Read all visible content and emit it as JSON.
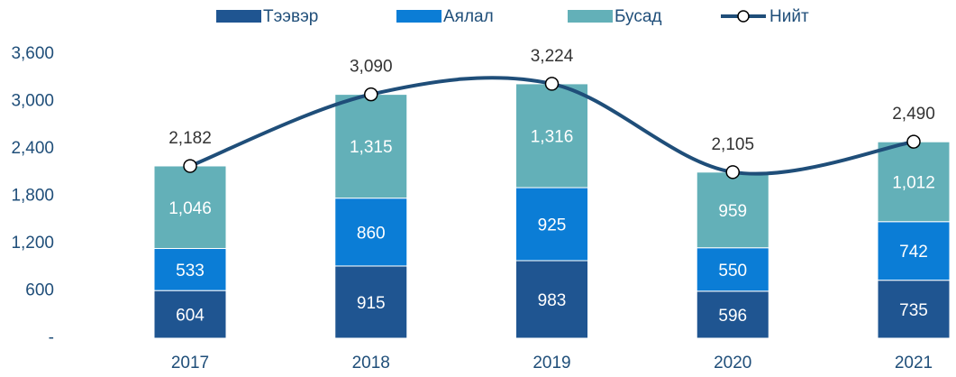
{
  "chart_data": {
    "type": "bar",
    "stacked": true,
    "categories": [
      "2017",
      "2018",
      "2019",
      "2020",
      "2021"
    ],
    "series": [
      {
        "name": "Тээвэр",
        "color": "#1f5591",
        "values": [
          604,
          915,
          983,
          596,
          735
        ]
      },
      {
        "name": "Аялал",
        "color": "#0b7dd6",
        "values": [
          533,
          860,
          925,
          550,
          742
        ]
      },
      {
        "name": "Бусад",
        "color": "#63b0b8",
        "values": [
          1046,
          1315,
          1316,
          959,
          1012
        ],
        "value_labels": [
          "1,046",
          "1,315",
          "1,316",
          "959",
          "1,012"
        ]
      },
      {
        "name": "Нийт",
        "type": "line",
        "color": "#1f4e79",
        "values": [
          2182,
          3090,
          3224,
          2105,
          2490
        ],
        "value_labels": [
          "2,182",
          "3,090",
          "3,224",
          "2,105",
          "2,490"
        ]
      }
    ],
    "ylim": [
      0,
      3600
    ],
    "yticks": [
      {
        "value": 0,
        "label": "-"
      },
      {
        "value": 600,
        "label": "600"
      },
      {
        "value": 1200,
        "label": "1,200"
      },
      {
        "value": 1800,
        "label": "1,800"
      },
      {
        "value": 2400,
        "label": "2,400"
      },
      {
        "value": 3000,
        "label": "3,000"
      },
      {
        "value": 3600,
        "label": "3,600"
      }
    ],
    "legend": "top"
  }
}
